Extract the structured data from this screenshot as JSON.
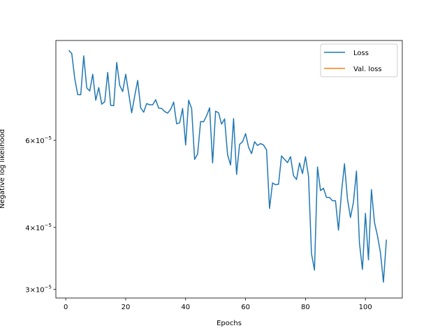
{
  "chart_data": {
    "type": "line",
    "xlabel": "Epochs",
    "ylabel": "Negative log likelihood",
    "yscale": "log",
    "xlim": [
      -3.3,
      112.3
    ],
    "ylim": [
      2.88e-05,
      9.55e-05
    ],
    "xticks": [
      0,
      20,
      40,
      60,
      80,
      100
    ],
    "yticks": [
      {
        "value": 3e-05,
        "mantissa": "3",
        "times": "×",
        "base": "10",
        "exponent": "−5"
      },
      {
        "value": 4e-05,
        "mantissa": "4",
        "times": "×",
        "base": "10",
        "exponent": "−5"
      },
      {
        "value": 6e-05,
        "mantissa": "6",
        "times": "×",
        "base": "10",
        "exponent": "−5"
      }
    ],
    "legend_position": "top-right",
    "series": [
      {
        "name": "Loss",
        "color": "#1f77b4",
        "x": [
          1,
          2,
          3,
          4,
          5,
          6,
          7,
          8,
          9,
          10,
          11,
          12,
          13,
          14,
          15,
          16,
          17,
          18,
          19,
          20,
          21,
          22,
          23,
          24,
          25,
          26,
          27,
          28,
          29,
          30,
          31,
          32,
          33,
          34,
          35,
          36,
          37,
          38,
          39,
          40,
          41,
          42,
          43,
          44,
          45,
          46,
          47,
          48,
          49,
          50,
          51,
          52,
          53,
          54,
          55,
          56,
          57,
          58,
          59,
          60,
          61,
          62,
          63,
          64,
          65,
          66,
          67,
          68,
          69,
          70,
          71,
          72,
          73,
          74,
          75,
          76,
          77,
          78,
          79,
          80,
          81,
          82,
          83,
          84,
          85,
          86,
          87,
          88,
          89,
          90,
          91,
          92,
          93,
          94,
          95,
          96,
          97,
          98,
          99,
          100,
          101,
          102,
          103,
          104,
          105,
          106,
          107
        ],
        "y": [
          9.12e-05,
          8.99e-05,
          8e-05,
          7.42e-05,
          7.42e-05,
          8.89e-05,
          7.66e-05,
          7.55e-05,
          8.16e-05,
          7.23e-05,
          7.67e-05,
          7.1e-05,
          7.18e-05,
          8.23e-05,
          7.06e-05,
          7.05e-05,
          8.62e-05,
          7.75e-05,
          7.53e-05,
          8.16e-05,
          7.47e-05,
          6.82e-05,
          7.37e-05,
          7.93e-05,
          6.98e-05,
          6.84e-05,
          7.12e-05,
          7.08e-05,
          7.08e-05,
          7.25e-05,
          6.97e-05,
          6.96e-05,
          6.86e-05,
          6.81e-05,
          6.93e-05,
          7.17e-05,
          6.48e-05,
          6.51e-05,
          6.96e-05,
          5.87e-05,
          7.23e-05,
          6.96e-05,
          5.49e-05,
          5.63e-05,
          6.55e-05,
          6.54e-05,
          6.73e-05,
          6.98e-05,
          5.4e-05,
          6.87e-05,
          6.82e-05,
          6.47e-05,
          6.63e-05,
          5.61e-05,
          5.35e-05,
          6.64e-05,
          5.12e-05,
          5.89e-05,
          5.96e-05,
          6.19e-05,
          5.81e-05,
          5.64e-05,
          5.96e-05,
          5.86e-05,
          5.91e-05,
          5.87e-05,
          5.74e-05,
          4.37e-05,
          4.92e-05,
          4.88e-05,
          4.89e-05,
          5.58e-05,
          5.49e-05,
          5.41e-05,
          5.56e-05,
          5.09e-05,
          5e-05,
          5.4e-05,
          5.14e-05,
          5.56e-05,
          5.08e-05,
          3.54e-05,
          3.28e-05,
          5.3e-05,
          4.75e-05,
          4.8e-05,
          4.6e-05,
          4.6e-05,
          4.53e-05,
          4.53e-05,
          3.95e-05,
          4.7e-05,
          5.38e-05,
          4.57e-05,
          4.19e-05,
          4.5e-05,
          5.2e-05,
          3.72e-05,
          3.29e-05,
          4.27e-05,
          3.44e-05,
          4.77e-05,
          4.1e-05,
          3.85e-05,
          3.56e-05,
          3.1e-05,
          3.78e-05
        ]
      },
      {
        "name": "Val. loss",
        "color": "#ff7f0e",
        "x": [],
        "y": []
      }
    ]
  }
}
